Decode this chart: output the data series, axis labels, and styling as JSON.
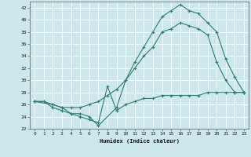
{
  "bg_color": "#cce8ec",
  "grid_color": "#ffffff",
  "line_color": "#2e7d6e",
  "xlabel": "Humidex (Indice chaleur)",
  "xlim": [
    -0.5,
    23.5
  ],
  "ylim": [
    22,
    43
  ],
  "yticks": [
    22,
    24,
    26,
    28,
    30,
    32,
    34,
    36,
    38,
    40,
    42
  ],
  "xticks": [
    0,
    1,
    2,
    3,
    4,
    5,
    6,
    7,
    8,
    9,
    10,
    11,
    12,
    13,
    14,
    15,
    16,
    17,
    18,
    19,
    20,
    21,
    22,
    23
  ],
  "line1_x": [
    0,
    1,
    2,
    3,
    4,
    5,
    6,
    7,
    8,
    9,
    10,
    11,
    12,
    13,
    14,
    15,
    16,
    17,
    18,
    19,
    20,
    21,
    22,
    23
  ],
  "line1_y": [
    26.5,
    26.5,
    25.5,
    25.0,
    24.5,
    24.0,
    23.5,
    23.0,
    29.0,
    25.0,
    26.0,
    26.5,
    27.0,
    27.0,
    27.5,
    27.5,
    27.5,
    27.5,
    27.5,
    28.0,
    28.0,
    28.0,
    28.0,
    28.0
  ],
  "line2_x": [
    0,
    1,
    2,
    3,
    4,
    5,
    6,
    7,
    8,
    9,
    10,
    11,
    12,
    13,
    14,
    15,
    16,
    17,
    18,
    19,
    20,
    21,
    22,
    23
  ],
  "line2_y": [
    26.5,
    26.5,
    26.0,
    25.5,
    25.5,
    25.5,
    26.0,
    26.5,
    27.5,
    28.5,
    30.0,
    32.0,
    34.0,
    35.5,
    38.0,
    38.5,
    39.5,
    39.0,
    38.5,
    37.5,
    33.0,
    30.0,
    28.0,
    28.0
  ],
  "line3_x": [
    0,
    2,
    3,
    4,
    5,
    6,
    7,
    9,
    10,
    11,
    12,
    13,
    14,
    15,
    16,
    17,
    18,
    19,
    20,
    21,
    22,
    23
  ],
  "line3_y": [
    26.5,
    26.0,
    25.5,
    24.5,
    24.5,
    24.0,
    22.5,
    25.5,
    30.0,
    33.0,
    35.5,
    38.0,
    40.5,
    41.5,
    42.5,
    41.5,
    41.0,
    39.5,
    38.0,
    33.5,
    30.5,
    28.0
  ]
}
